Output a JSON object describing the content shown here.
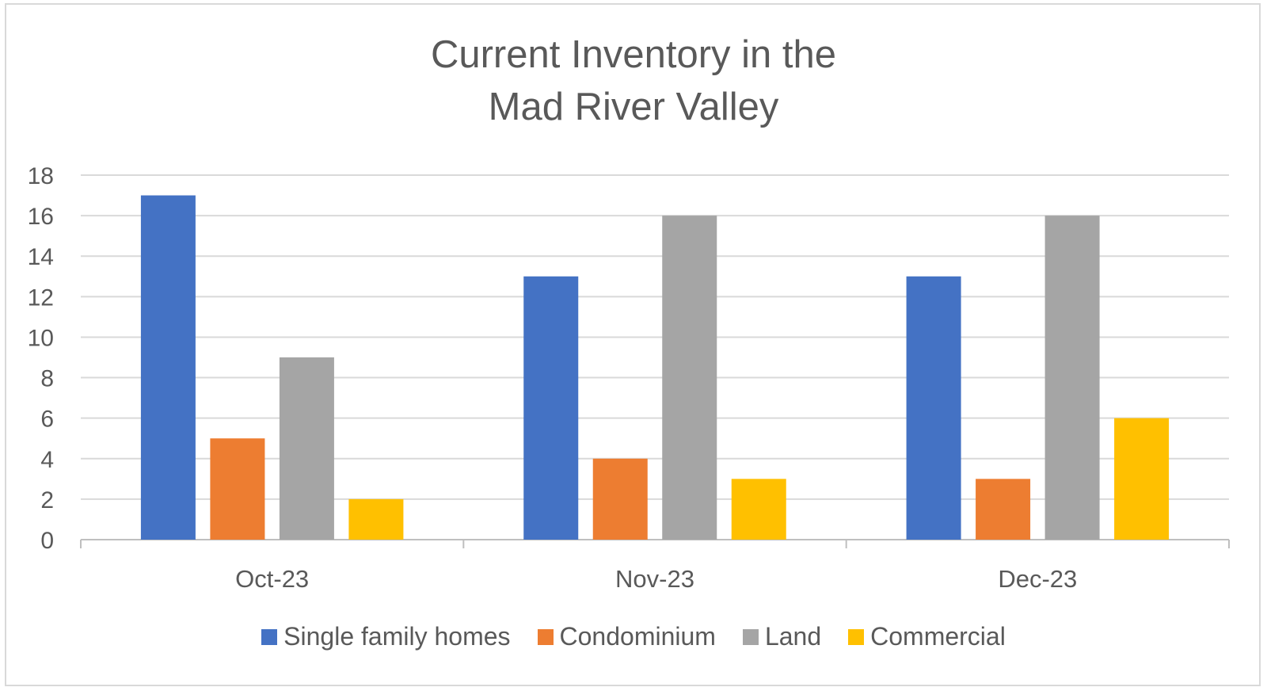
{
  "chart_data": {
    "type": "bar",
    "title_lines": [
      "Current Inventory in the",
      "Mad River Valley"
    ],
    "categories": [
      "Oct-23",
      "Nov-23",
      "Dec-23"
    ],
    "series": [
      {
        "name": "Single family homes",
        "color": "#4472c4",
        "values": [
          17,
          13,
          13
        ]
      },
      {
        "name": "Condominium",
        "color": "#ed7d31",
        "values": [
          5,
          4,
          3
        ]
      },
      {
        "name": "Land",
        "color": "#a5a5a5",
        "values": [
          9,
          16,
          16
        ]
      },
      {
        "name": "Commercial",
        "color": "#ffc000",
        "values": [
          2,
          3,
          6
        ]
      }
    ],
    "y_ticks": [
      "0",
      "2",
      "4",
      "6",
      "8",
      "10",
      "12",
      "14",
      "16",
      "18"
    ],
    "ylim": [
      0,
      18
    ],
    "grid": true,
    "legend_position": "bottom"
  }
}
